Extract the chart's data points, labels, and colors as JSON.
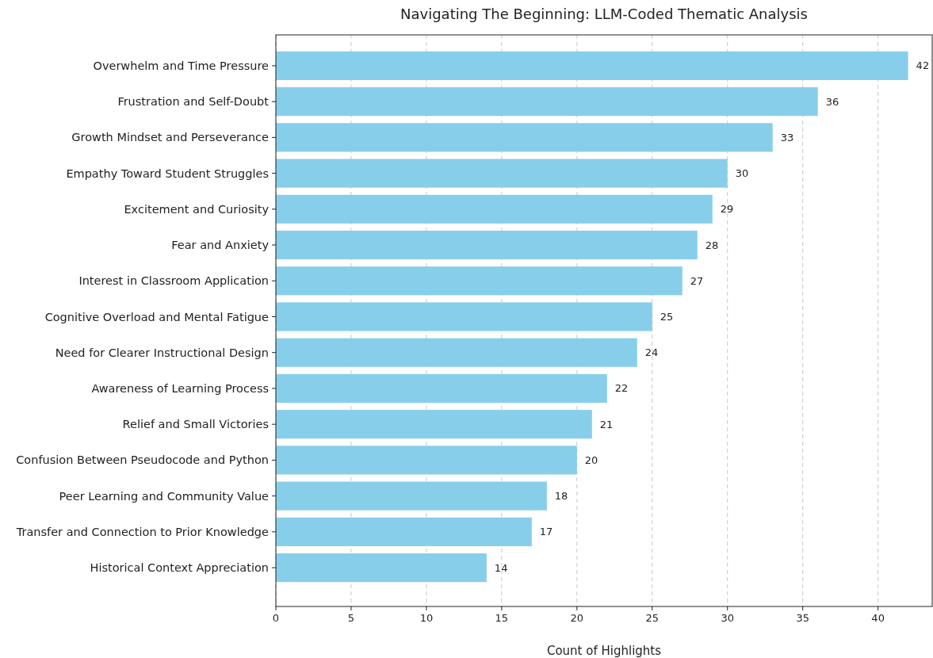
{
  "chart_data": {
    "type": "bar",
    "orientation": "horizontal",
    "title": "Navigating The Beginning: LLM-Coded Thematic Analysis",
    "xlabel": "Count of Highlights",
    "categories": [
      "Overwhelm and Time Pressure",
      "Frustration and Self-Doubt",
      "Growth Mindset and Perseverance",
      "Empathy Toward Student Struggles",
      "Excitement and Curiosity",
      "Fear and Anxiety",
      "Interest in Classroom Application",
      "Cognitive Overload and Mental Fatigue",
      "Need for Clearer Instructional Design",
      "Awareness of Learning Process",
      "Relief and Small Victories",
      "Confusion Between Pseudocode and Python",
      "Peer Learning and Community Value",
      "Transfer and Connection to Prior Knowledge",
      "Historical Context Appreciation"
    ],
    "values": [
      42,
      36,
      33,
      30,
      29,
      28,
      27,
      25,
      24,
      22,
      21,
      20,
      18,
      17,
      14
    ],
    "color": "#87ceeb",
    "xlim": [
      0,
      43.6
    ],
    "xticks": [
      0,
      5,
      10,
      15,
      20,
      25,
      30,
      35,
      40
    ],
    "grid": "x",
    "data_labels": true
  }
}
